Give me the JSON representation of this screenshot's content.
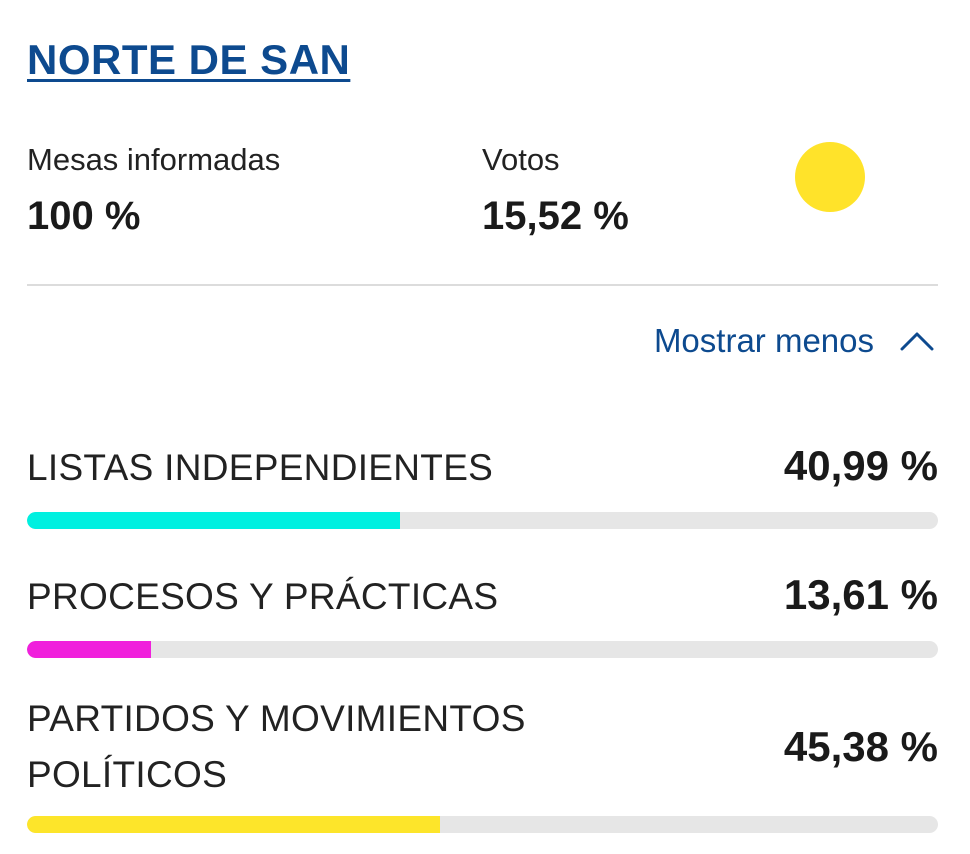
{
  "region": {
    "title": "NORTE DE SAN"
  },
  "stats": {
    "mesas": {
      "label": "Mesas informadas",
      "value": "100 %"
    },
    "votos": {
      "label": "Votos",
      "value": "15,52 %"
    }
  },
  "indicator": {
    "color": "#ffe32a"
  },
  "toggle": {
    "label": "Mostrar menos",
    "icon": "chevron-up-icon"
  },
  "results": [
    {
      "name": "LISTAS INDEPENDIENTES",
      "percent_label": "40,99 %",
      "percent": 40.99,
      "color": "#00f0e0"
    },
    {
      "name": "PROCESOS Y PRÁCTICAS",
      "percent_label": "13,61 %",
      "percent": 13.61,
      "color": "#f020dc"
    },
    {
      "name": "PARTIDOS Y MOVIMIENTOS POLÍTICOS",
      "percent_label": "45,38 %",
      "percent": 45.38,
      "color": "#fde52a"
    }
  ]
}
